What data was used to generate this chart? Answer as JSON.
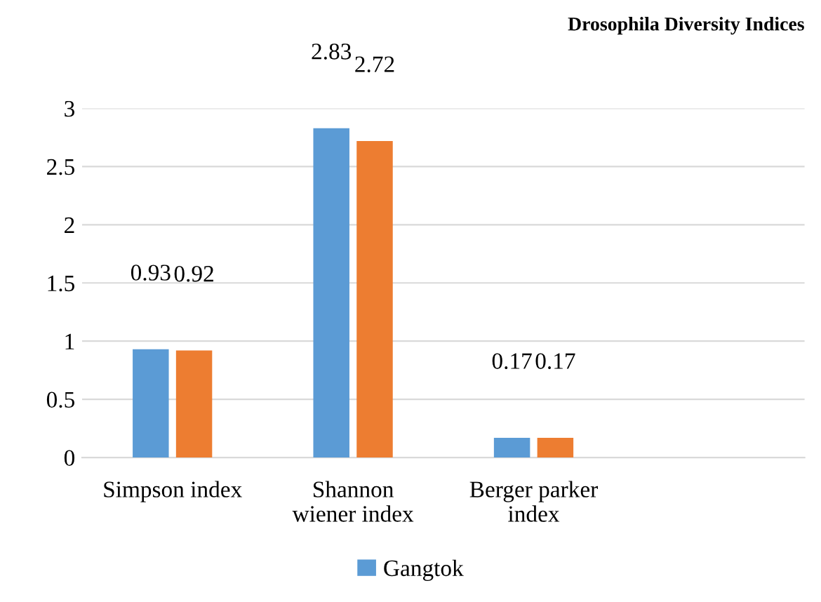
{
  "chart_data": {
    "type": "bar",
    "title": "Drosophila Diversity Indices",
    "categories": [
      "Simpson index",
      "Shannon\nwiener index",
      "Berger parker\nindex",
      null
    ],
    "series": [
      {
        "name": "Gangtok",
        "color": "#5b9bd5",
        "values": [
          0.93,
          2.83,
          0.17,
          null
        ]
      },
      {
        "color": "#ed7d31",
        "values": [
          0.92,
          2.72,
          0.17,
          null
        ]
      }
    ],
    "ylim": [
      0,
      3
    ],
    "yticks": [
      0,
      0.5,
      1,
      1.5,
      2,
      2.5,
      3
    ],
    "grid": "y",
    "legend": "bottom",
    "data_labels": true
  }
}
